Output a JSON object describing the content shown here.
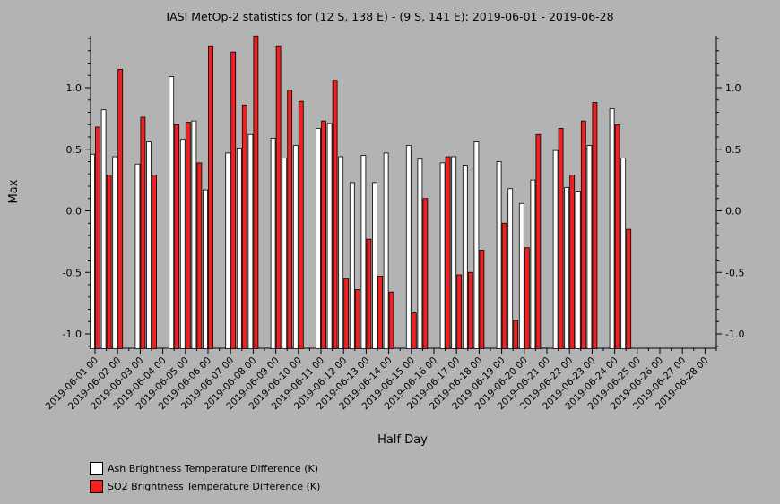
{
  "chart_data": {
    "type": "bar",
    "title": "IASI MetOp-2 statistics for (12 S, 138 E) - (9 S, 141 E): 2019-06-01 - 2019-06-28",
    "xlabel": "Half Day",
    "ylabel": "Max",
    "ylim": [
      -1.12,
      1.4
    ],
    "yticks": [
      -1.0,
      -0.5,
      0.0,
      0.5,
      1.0
    ],
    "ytick_labels": [
      "-1.0",
      "-0.5",
      "0.0",
      "0.5",
      "1.0"
    ],
    "xtick_labels": [
      "2019-06-01 00",
      "2019-06-02 00",
      "2019-06-03 00",
      "2019-06-04 00",
      "2019-06-05 00",
      "2019-06-06 00",
      "2019-06-07 00",
      "2019-06-08 00",
      "2019-06-09 00",
      "2019-06-10 00",
      "2019-06-11 00",
      "2019-06-12 00",
      "2019-06-13 00",
      "2019-06-14 00",
      "2019-06-15 00",
      "2019-06-16 00",
      "2019-06-17 00",
      "2019-06-18 00",
      "2019-06-19 00",
      "2019-06-20 00",
      "2019-06-21 00",
      "2019-06-22 00",
      "2019-06-23 00",
      "2019-06-24 00",
      "2019-06-25 00",
      "2019-06-26 00",
      "2019-06-27 00",
      "2019-06-28 00"
    ],
    "legend_placement": "bottom-left",
    "grid": false,
    "series": [
      {
        "name": "Ash Brightness Temperature Difference (K)",
        "color": "#ffffff",
        "values": [
          0.46,
          0.82,
          0.44,
          null,
          0.38,
          0.56,
          null,
          1.09,
          0.58,
          0.73,
          0.17,
          null,
          0.47,
          0.51,
          0.62,
          null,
          0.59,
          0.43,
          0.53,
          null,
          0.67,
          0.71,
          0.44,
          0.23,
          0.45,
          0.23,
          0.47,
          null,
          0.53,
          0.42,
          null,
          0.39,
          0.44,
          0.37,
          0.56,
          null,
          0.4,
          0.18,
          0.06,
          0.25,
          null,
          0.49,
          0.19,
          0.16,
          0.53,
          null,
          0.83,
          0.43
        ]
      },
      {
        "name": "SO2 Brightness Temperature Difference (K)",
        "color": "#ee2222",
        "values": [
          0.68,
          0.29,
          1.15,
          null,
          0.76,
          0.29,
          null,
          0.7,
          0.72,
          0.39,
          1.34,
          null,
          1.29,
          0.86,
          1.42,
          null,
          1.34,
          0.98,
          0.89,
          null,
          0.73,
          1.06,
          -0.55,
          -0.64,
          -0.23,
          -0.53,
          -0.66,
          null,
          -0.83,
          0.1,
          null,
          0.44,
          -0.52,
          -0.5,
          -0.32,
          null,
          -0.1,
          -0.89,
          -0.3,
          0.62,
          null,
          0.67,
          0.29,
          0.73,
          0.88,
          null,
          0.7,
          -0.15
        ]
      }
    ]
  }
}
